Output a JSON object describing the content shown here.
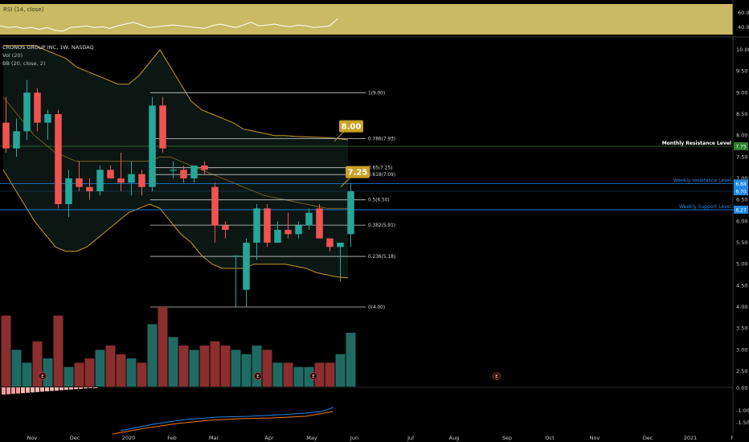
{
  "header": {
    "title": "CRONOS GROUP INC, 1W, NASDAQ",
    "indicator_vol": "Vol (20)",
    "indicator_bb": "BB (20, close, 2)"
  },
  "colors": {
    "background": "#000000",
    "up": "#26a69a",
    "down": "#ef5350",
    "bollinger": "#c8982e",
    "fib": "#cccccc",
    "resistance": "#2e7d32",
    "weekly_levels": "#1e88e5",
    "callout": "#c9a227",
    "rsi_fill": "#c9ba63"
  },
  "x_axis": {
    "labels": [
      "Nov",
      "Dec",
      "2020",
      "Feb",
      "Mar",
      "Apr",
      "May",
      "Jun",
      "Jul",
      "Aug",
      "Sep",
      "Oct",
      "Nov",
      "Dec",
      "2021",
      "F"
    ]
  },
  "rsi_panel": {
    "label": "RSI (14, close)",
    "ticks": [
      "60.00",
      "40.00"
    ],
    "values": [
      40,
      38,
      39,
      37,
      38,
      36,
      38,
      35,
      34,
      38,
      39,
      40,
      38,
      39,
      37,
      40,
      42,
      44,
      41,
      38,
      39,
      40,
      41,
      40,
      39,
      38,
      37,
      40,
      42,
      40,
      38,
      41,
      44,
      40,
      41,
      42,
      40,
      39,
      41,
      40,
      38,
      39,
      40,
      48
    ]
  },
  "price_panel": {
    "ticks": [
      "10.00",
      "9.50",
      "9.00",
      "8.50",
      "8.00",
      "7.50",
      "7.00",
      "6.50",
      "6.00",
      "5.50",
      "5.00",
      "4.50",
      "4.00",
      "3.50",
      "3.00",
      "2.50"
    ],
    "tick_values": [
      10,
      9.5,
      9,
      8.5,
      8,
      7.5,
      7,
      6.5,
      6,
      5.5,
      5,
      4.5,
      4,
      3.5,
      3,
      2.5
    ],
    "right_tags": [
      {
        "text": "7.75",
        "color": "#2e7d32"
      },
      {
        "text": "6.88",
        "color": "#1e88e5"
      },
      {
        "text": "6.70",
        "color": "#1e88e5"
      },
      {
        "text": "6.27",
        "color": "#1e88e5"
      }
    ]
  },
  "levels": [
    {
      "label": "Monthly Resistance Level",
      "value": 7.75
    },
    {
      "label": "Weekly resistance Level",
      "value": 6.88
    },
    {
      "label": "Weekly Support Level",
      "value": 6.27
    }
  ],
  "fib_levels": [
    {
      "label": "1(9.00)",
      "value": 9.0
    },
    {
      "label": "0.786(7.93)",
      "value": 7.93
    },
    {
      "label": "0.65(7.25)",
      "value": 7.25
    },
    {
      "label": "0.618(7.09)",
      "value": 7.09
    },
    {
      "label": "0.5(6.50)",
      "value": 6.5
    },
    {
      "label": "0.382(5.91)",
      "value": 5.91
    },
    {
      "label": "0.236(5.18)",
      "value": 5.18
    },
    {
      "label": "0(4.00)",
      "value": 4.0
    }
  ],
  "callouts": [
    {
      "text": "8.00",
      "value": 8.0
    },
    {
      "text": "7.25",
      "value": 7.25
    }
  ],
  "lower_panel": {
    "ticks": [
      "0.00",
      "-1.00",
      "-1.50"
    ]
  },
  "chart_data": {
    "type": "candlestick",
    "title": "CRONOS GROUP INC, 1W, NASDAQ",
    "ylim": [
      2.2,
      10.1
    ],
    "candles": [
      {
        "o": 8.3,
        "h": 8.9,
        "l": 7.6,
        "c": 7.7
      },
      {
        "o": 7.7,
        "h": 8.4,
        "l": 7.5,
        "c": 8.1
      },
      {
        "o": 8.1,
        "h": 9.3,
        "l": 7.9,
        "c": 9.0
      },
      {
        "o": 9.0,
        "h": 9.1,
        "l": 8.1,
        "c": 8.3
      },
      {
        "o": 8.3,
        "h": 8.6,
        "l": 7.9,
        "c": 8.5
      },
      {
        "o": 8.5,
        "h": 8.6,
        "l": 6.3,
        "c": 6.4
      },
      {
        "o": 6.4,
        "h": 7.2,
        "l": 6.1,
        "c": 7.0
      },
      {
        "o": 7.0,
        "h": 7.4,
        "l": 6.7,
        "c": 6.8
      },
      {
        "o": 6.8,
        "h": 7.0,
        "l": 6.5,
        "c": 6.7
      },
      {
        "o": 6.7,
        "h": 7.3,
        "l": 6.6,
        "c": 7.2
      },
      {
        "o": 7.2,
        "h": 7.3,
        "l": 7.0,
        "c": 7.0
      },
      {
        "o": 7.0,
        "h": 7.6,
        "l": 6.7,
        "c": 6.9
      },
      {
        "o": 6.9,
        "h": 7.4,
        "l": 6.6,
        "c": 7.1
      },
      {
        "o": 7.1,
        "h": 7.2,
        "l": 6.6,
        "c": 6.8
      },
      {
        "o": 6.8,
        "h": 8.9,
        "l": 6.7,
        "c": 8.7
      },
      {
        "o": 8.7,
        "h": 8.9,
        "l": 7.6,
        "c": 7.7
      },
      {
        "o": 7.2,
        "h": 7.4,
        "l": 7.0,
        "c": 7.2
      },
      {
        "o": 7.2,
        "h": 7.3,
        "l": 6.9,
        "c": 7.0
      },
      {
        "o": 7.0,
        "h": 7.3,
        "l": 6.9,
        "c": 7.3
      },
      {
        "o": 7.3,
        "h": 7.4,
        "l": 7.1,
        "c": 7.2
      },
      {
        "o": 6.8,
        "h": 6.9,
        "l": 5.5,
        "c": 5.9
      },
      {
        "o": 5.9,
        "h": 6.0,
        "l": 5.6,
        "c": 5.8
      },
      {
        "o": 5.2,
        "h": 5.2,
        "l": 4.0,
        "c": 5.2
      },
      {
        "o": 4.4,
        "h": 5.6,
        "l": 4.0,
        "c": 5.5
      },
      {
        "o": 5.5,
        "h": 6.4,
        "l": 5.1,
        "c": 6.3
      },
      {
        "o": 6.3,
        "h": 6.4,
        "l": 5.4,
        "c": 5.5
      },
      {
        "o": 5.5,
        "h": 6.0,
        "l": 5.5,
        "c": 5.8
      },
      {
        "o": 5.8,
        "h": 6.2,
        "l": 5.6,
        "c": 5.7
      },
      {
        "o": 5.7,
        "h": 6.0,
        "l": 5.6,
        "c": 5.9
      },
      {
        "o": 5.9,
        "h": 6.3,
        "l": 5.8,
        "c": 6.2
      },
      {
        "o": 6.3,
        "h": 6.4,
        "l": 5.6,
        "c": 5.6
      },
      {
        "o": 5.6,
        "h": 5.6,
        "l": 5.3,
        "c": 5.4
      },
      {
        "o": 5.4,
        "h": 5.5,
        "l": 4.6,
        "c": 5.5
      },
      {
        "o": 5.7,
        "h": 6.9,
        "l": 5.4,
        "c": 6.7
      }
    ],
    "volume": [
      3.8,
      3.0,
      2.7,
      3.2,
      2.8,
      3.8,
      2.6,
      2.7,
      2.8,
      3.0,
      3.1,
      2.9,
      2.8,
      2.7,
      3.6,
      4.0,
      3.3,
      3.1,
      3.0,
      3.1,
      3.2,
      3.1,
      3.0,
      2.9,
      3.1,
      3.0,
      2.7,
      2.7,
      2.6,
      2.6,
      2.7,
      2.7,
      2.9,
      3.4
    ],
    "bb_upper": [
      10.1,
      10.1,
      10.1,
      10.1,
      10.0,
      9.9,
      9.8,
      9.6,
      9.5,
      9.4,
      9.3,
      9.2,
      9.2,
      9.4,
      9.7,
      10.0,
      9.6,
      9.2,
      8.8,
      8.6,
      8.5,
      8.4,
      8.3,
      8.15,
      8.1,
      8.05,
      8.0,
      8.0,
      7.98,
      7.97,
      7.96,
      7.95,
      7.93,
      7.9
    ],
    "bb_lower": [
      7.2,
      6.8,
      6.4,
      6.0,
      5.7,
      5.4,
      5.3,
      5.3,
      5.4,
      5.6,
      5.8,
      6.0,
      6.2,
      6.3,
      6.4,
      6.3,
      6.0,
      5.7,
      5.5,
      5.2,
      5.0,
      4.9,
      4.9,
      4.9,
      5.0,
      5.0,
      5.0,
      5.0,
      4.95,
      4.9,
      4.8,
      4.75,
      4.7,
      4.68
    ],
    "bb_basis": [
      8.9,
      8.6,
      8.3,
      8.0,
      7.8,
      7.6,
      7.5,
      7.4,
      7.4,
      7.4,
      7.4,
      7.4,
      7.4,
      7.4,
      7.4,
      7.5,
      7.5,
      7.4,
      7.3,
      7.2,
      7.1,
      7.0,
      6.9,
      6.8,
      6.7,
      6.6,
      6.55,
      6.5,
      6.45,
      6.4,
      6.35,
      6.3,
      6.3,
      6.3
    ]
  }
}
